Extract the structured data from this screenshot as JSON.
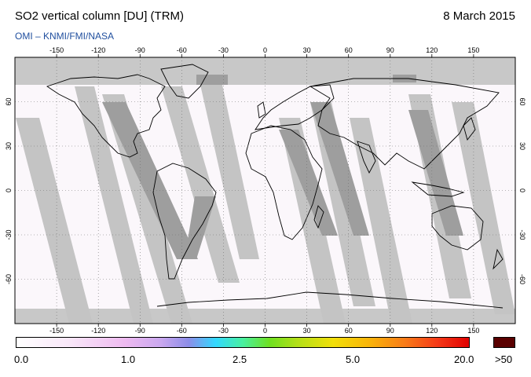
{
  "header": {
    "title": "SO2 vertical column [DU] (TRM)",
    "date": "8 March 2015",
    "credit": "OMI  –  KNMI/FMI/NASA"
  },
  "map": {
    "projection": "equirectangular",
    "lon_range": [
      -180,
      180
    ],
    "lat_range": [
      -90,
      90
    ],
    "lon_ticks": [
      -150,
      -120,
      -90,
      -60,
      -30,
      0,
      30,
      60,
      90,
      120,
      150
    ],
    "lat_ticks": [
      60,
      30,
      0,
      -30,
      -60
    ],
    "lon_tick_labels": [
      "-150",
      "-120",
      "-90",
      "-60",
      "-30",
      "0",
      "30",
      "60",
      "90",
      "120",
      "150"
    ],
    "lat_tick_labels": [
      "60",
      "30",
      "0",
      "-30",
      "-60"
    ],
    "grid": "dotted",
    "coastline_color": "#000000",
    "no_data_color": "#c8c8c8"
  },
  "legend": {
    "labels": [
      "0.0",
      "1.0",
      "2.5",
      "5.0",
      "20.0"
    ],
    "overflow_label": ">50",
    "overflow_color": "#5a0000"
  }
}
